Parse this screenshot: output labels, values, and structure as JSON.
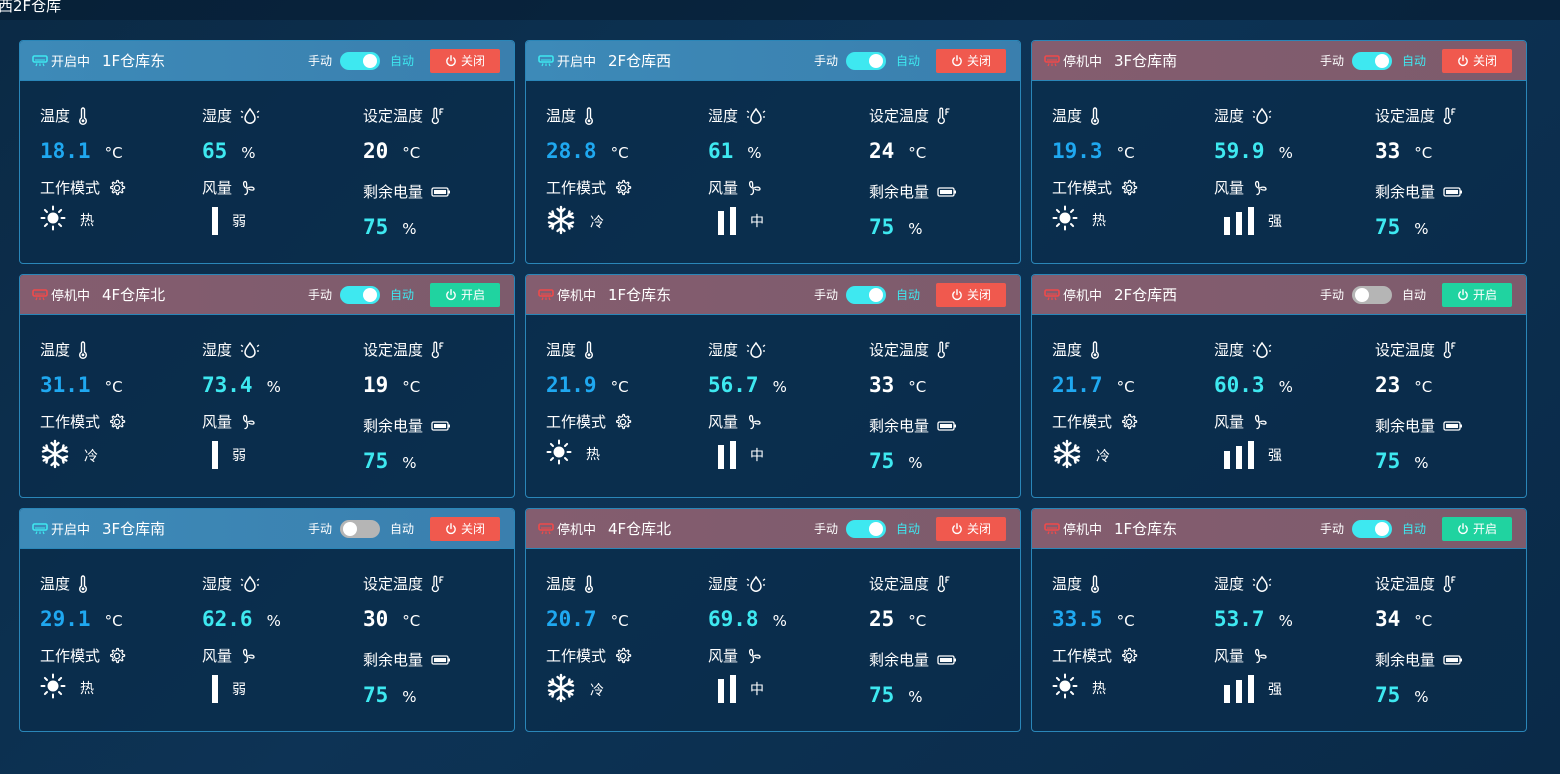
{
  "page": {
    "title": "西2F仓库"
  },
  "labels": {
    "manual": "手动",
    "auto": "自动",
    "temperature": "温度",
    "humidity": "湿度",
    "set_temperature": "设定温度",
    "work_mode": "工作模式",
    "fan": "风量",
    "battery": "剩余电量",
    "unit_c": "°C",
    "unit_pct": "%"
  },
  "colors": {
    "on_header": "#3d8ab8",
    "off_header": "#845d6f",
    "close_btn": "#f0594e",
    "open_btn": "#20d3a0",
    "toggle_on": "#3ee8f0",
    "accent_blue": "#1fa8f0"
  },
  "cards": [
    {
      "status": "开启中",
      "status_state": "on",
      "name": "1F仓库东",
      "auto_mode": true,
      "button": "关闭",
      "button_type": "close",
      "temperature": "18.1",
      "humidity": "65",
      "set_temperature": "20",
      "mode_icon": "sun-icon",
      "mode_text": "热",
      "fan_level": 1,
      "fan_text": "弱",
      "battery": "75"
    },
    {
      "status": "开启中",
      "status_state": "on",
      "name": "2F仓库西",
      "auto_mode": true,
      "button": "关闭",
      "button_type": "close",
      "temperature": "28.8",
      "humidity": "61",
      "set_temperature": "24",
      "mode_icon": "snowflake-icon",
      "mode_text": "冷",
      "fan_level": 2,
      "fan_text": "中",
      "battery": "75"
    },
    {
      "status": "停机中",
      "status_state": "off",
      "name": "3F仓库南",
      "auto_mode": true,
      "button": "关闭",
      "button_type": "close",
      "temperature": "19.3",
      "humidity": "59.9",
      "set_temperature": "33",
      "mode_icon": "sun-icon",
      "mode_text": "热",
      "fan_level": 3,
      "fan_text": "强",
      "battery": "75"
    },
    {
      "status": "停机中",
      "status_state": "off",
      "name": "4F仓库北",
      "auto_mode": true,
      "button": "开启",
      "button_type": "open",
      "temperature": "31.1",
      "humidity": "73.4",
      "set_temperature": "19",
      "mode_icon": "snowflake-icon",
      "mode_text": "冷",
      "fan_level": 1,
      "fan_text": "弱",
      "battery": "75"
    },
    {
      "status": "停机中",
      "status_state": "off",
      "name": "1F仓库东",
      "auto_mode": true,
      "button": "关闭",
      "button_type": "close",
      "temperature": "21.9",
      "humidity": "56.7",
      "set_temperature": "33",
      "mode_icon": "sun-icon",
      "mode_text": "热",
      "fan_level": 2,
      "fan_text": "中",
      "battery": "75"
    },
    {
      "status": "停机中",
      "status_state": "off",
      "name": "2F仓库西",
      "auto_mode": false,
      "button": "开启",
      "button_type": "open",
      "temperature": "21.7",
      "humidity": "60.3",
      "set_temperature": "23",
      "mode_icon": "snowflake-icon",
      "mode_text": "冷",
      "fan_level": 3,
      "fan_text": "强",
      "battery": "75"
    },
    {
      "status": "开启中",
      "status_state": "on",
      "name": "3F仓库南",
      "auto_mode": false,
      "button": "关闭",
      "button_type": "close",
      "temperature": "29.1",
      "humidity": "62.6",
      "set_temperature": "30",
      "mode_icon": "sun-icon",
      "mode_text": "热",
      "fan_level": 1,
      "fan_text": "弱",
      "battery": "75"
    },
    {
      "status": "停机中",
      "status_state": "off",
      "name": "4F仓库北",
      "auto_mode": true,
      "button": "关闭",
      "button_type": "close",
      "temperature": "20.7",
      "humidity": "69.8",
      "set_temperature": "25",
      "mode_icon": "snowflake-icon",
      "mode_text": "冷",
      "fan_level": 2,
      "fan_text": "中",
      "battery": "75"
    },
    {
      "status": "停机中",
      "status_state": "off",
      "name": "1F仓库东",
      "auto_mode": true,
      "button": "开启",
      "button_type": "open",
      "temperature": "33.5",
      "humidity": "53.7",
      "set_temperature": "34",
      "mode_icon": "sun-icon",
      "mode_text": "热",
      "fan_level": 3,
      "fan_text": "强",
      "battery": "75"
    }
  ]
}
